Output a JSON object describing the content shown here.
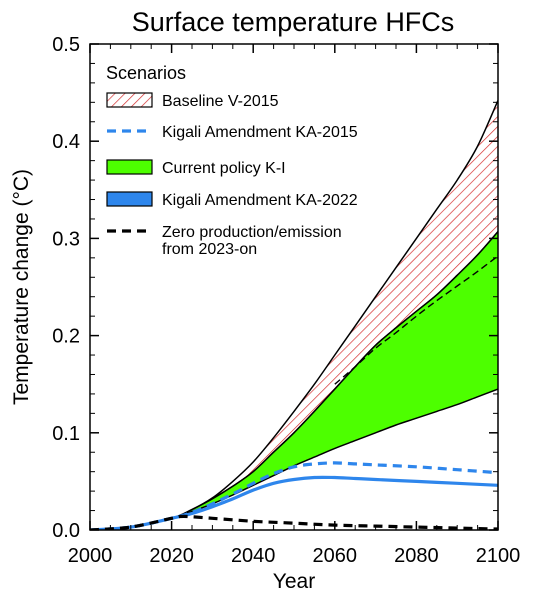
{
  "chart_data": {
    "type": "area",
    "title": "Surface temperature HFCs",
    "xlabel": "Year",
    "ylabel": "Temperature change (°C)",
    "xlim": [
      2000,
      2100
    ],
    "ylim": [
      0,
      0.5
    ],
    "xticks": [
      "2000",
      "2020",
      "2040",
      "2060",
      "2080",
      "2100"
    ],
    "yticks": [
      "0.0",
      "0.1",
      "0.2",
      "0.3",
      "0.4",
      "0.5"
    ],
    "grid": false,
    "legend": {
      "title": "Scenarios",
      "position": "top-left"
    },
    "series": [
      {
        "name": "Baseline V-2015",
        "style": "hatched-band",
        "color": "#d62e2e",
        "x": [
          2000,
          2010,
          2020,
          2025,
          2030,
          2035,
          2040,
          2045,
          2050,
          2055,
          2060,
          2065,
          2070,
          2075,
          2080,
          2085,
          2090,
          2095,
          2100
        ],
        "upper": [
          0.0,
          0.003,
          0.012,
          0.021,
          0.033,
          0.05,
          0.07,
          0.095,
          0.122,
          0.15,
          0.18,
          0.21,
          0.24,
          0.27,
          0.3,
          0.33,
          0.36,
          0.395,
          0.442
        ],
        "lower": [
          0.0,
          0.003,
          0.012,
          0.021,
          0.032,
          0.045,
          0.06,
          0.08,
          0.1,
          0.122,
          0.145,
          0.168,
          0.19,
          0.208,
          0.225,
          0.242,
          0.262,
          0.283,
          0.307
        ]
      },
      {
        "name": "Kigali Amendment KA-2015",
        "style": "dashed-line",
        "color": "#2e86ec",
        "x": [
          2000,
          2010,
          2020,
          2025,
          2030,
          2035,
          2040,
          2045,
          2050,
          2055,
          2060,
          2065,
          2070,
          2080,
          2090,
          2100
        ],
        "values": [
          0.0,
          0.003,
          0.012,
          0.018,
          0.027,
          0.037,
          0.048,
          0.058,
          0.065,
          0.068,
          0.069,
          0.068,
          0.067,
          0.065,
          0.062,
          0.059
        ]
      },
      {
        "name": "Current policy K-I",
        "style": "filled-band",
        "color": "#4dff00",
        "x": [
          2000,
          2010,
          2020,
          2025,
          2030,
          2035,
          2040,
          2045,
          2050,
          2055,
          2060,
          2065,
          2070,
          2075,
          2080,
          2085,
          2090,
          2095,
          2100
        ],
        "upper": [
          0.0,
          0.003,
          0.012,
          0.021,
          0.032,
          0.045,
          0.06,
          0.08,
          0.1,
          0.122,
          0.145,
          0.168,
          0.19,
          0.208,
          0.225,
          0.242,
          0.262,
          0.283,
          0.307
        ],
        "lower": [
          0.0,
          0.003,
          0.012,
          0.019,
          0.027,
          0.036,
          0.046,
          0.056,
          0.066,
          0.075,
          0.084,
          0.092,
          0.1,
          0.108,
          0.115,
          0.122,
          0.129,
          0.137,
          0.145
        ]
      },
      {
        "name": "Kigali Amendment KA-2022",
        "style": "solid-line",
        "color": "#2e86ec",
        "x": [
          2000,
          2010,
          2020,
          2025,
          2030,
          2035,
          2040,
          2045,
          2050,
          2055,
          2060,
          2065,
          2070,
          2080,
          2090,
          2100
        ],
        "values": [
          0.0,
          0.003,
          0.012,
          0.017,
          0.024,
          0.032,
          0.041,
          0.048,
          0.052,
          0.054,
          0.054,
          0.053,
          0.052,
          0.05,
          0.048,
          0.046
        ]
      },
      {
        "name": "Zero production/emission from 2023-on",
        "style": "dashed-line",
        "color": "#000000",
        "x": [
          2000,
          2010,
          2020,
          2023,
          2030,
          2040,
          2050,
          2060,
          2070,
          2080,
          2090,
          2100
        ],
        "values": [
          0.0,
          0.003,
          0.012,
          0.014,
          0.012,
          0.009,
          0.007,
          0.005,
          0.004,
          0.003,
          0.002,
          0.001
        ]
      },
      {
        "name": "",
        "style": "thin-dashed-line",
        "color": "#000000",
        "x": [
          2060,
          2065,
          2070,
          2075,
          2080,
          2085,
          2090,
          2095,
          2100
        ],
        "values": [
          0.15,
          0.168,
          0.187,
          0.203,
          0.22,
          0.236,
          0.251,
          0.266,
          0.282
        ]
      }
    ],
    "legend_entries": [
      {
        "label": "Baseline V-2015",
        "swatch": "hatched",
        "color": "#d62e2e"
      },
      {
        "label": "Kigali Amendment KA-2015",
        "swatch": "dashed",
        "color": "#2e86ec"
      },
      {
        "label": "Current policy K-I",
        "swatch": "filled",
        "color": "#4dff00"
      },
      {
        "label": "Kigali Amendment KA-2022",
        "swatch": "filled",
        "color": "#2e86ec"
      },
      {
        "label": "Zero production/emission",
        "label2": "from 2023-on",
        "swatch": "dashed",
        "color": "#000000"
      }
    ]
  }
}
